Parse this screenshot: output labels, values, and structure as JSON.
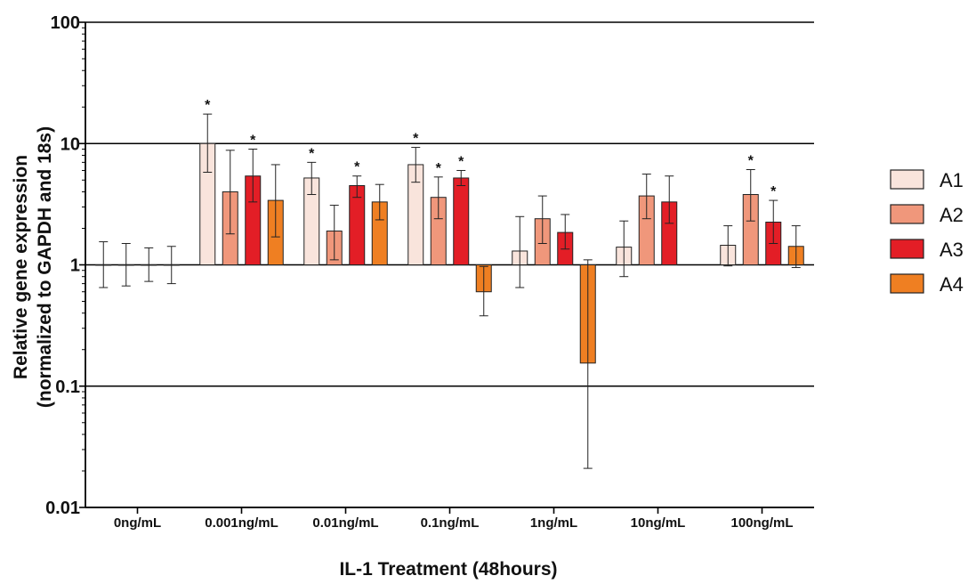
{
  "chart_data": {
    "type": "bar",
    "yscale": "log",
    "ylim": [
      0.01,
      100
    ],
    "yticks": [
      "0.01",
      "0.1",
      "1",
      "10",
      "100"
    ],
    "ylabel_line1": "Relative gene expression",
    "ylabel_line2": "(normalized to GAPDH and 18s)",
    "xlabel": "IL-1 Treatment (48hours)",
    "categories": [
      "0ng/mL",
      "0.001ng/mL",
      "0.01ng/mL",
      "0.1ng/mL",
      "1ng/mL",
      "10ng/mL",
      "100ng/mL"
    ],
    "bar_baseline": 1,
    "legend_position": "right",
    "grid": "major y",
    "series": [
      {
        "name": "A1",
        "color": "#f9e4dc",
        "values": [
          1,
          10,
          5.2,
          6.7,
          1.3,
          1.4,
          1.45
        ],
        "err_low": [
          0.65,
          5.8,
          3.8,
          4.8,
          0.65,
          0.8,
          0.98
        ],
        "err_high": [
          1.55,
          17.5,
          7.0,
          9.3,
          2.5,
          2.3,
          2.1
        ],
        "significant": [
          false,
          true,
          true,
          true,
          false,
          false,
          false
        ]
      },
      {
        "name": "A2",
        "color": "#f0977b",
        "values": [
          1,
          4.0,
          1.9,
          3.6,
          2.4,
          3.7,
          3.8
        ],
        "err_low": [
          0.67,
          1.8,
          1.1,
          2.4,
          1.5,
          2.4,
          2.3
        ],
        "err_high": [
          1.5,
          8.8,
          3.1,
          5.3,
          3.7,
          5.6,
          6.1
        ],
        "significant": [
          false,
          false,
          false,
          true,
          false,
          false,
          true
        ]
      },
      {
        "name": "A3",
        "color": "#e31e26",
        "values": [
          1,
          5.4,
          4.5,
          5.2,
          1.85,
          3.3,
          2.25
        ],
        "err_low": [
          0.73,
          3.3,
          3.6,
          4.5,
          1.35,
          2.2,
          1.5
        ],
        "err_high": [
          1.38,
          9.0,
          5.4,
          6.0,
          2.6,
          5.4,
          3.4
        ],
        "significant": [
          false,
          true,
          true,
          true,
          false,
          false,
          true
        ]
      },
      {
        "name": "A4",
        "color": "#ef7f22",
        "values": [
          1,
          3.4,
          3.3,
          0.6,
          0.155,
          null,
          1.42
        ],
        "err_low": [
          0.7,
          1.7,
          2.35,
          0.38,
          0.021,
          null,
          0.95
        ],
        "err_high": [
          1.42,
          6.7,
          4.6,
          0.97,
          1.1,
          null,
          2.1
        ],
        "significant": [
          false,
          false,
          false,
          false,
          false,
          false,
          false
        ]
      }
    ]
  }
}
